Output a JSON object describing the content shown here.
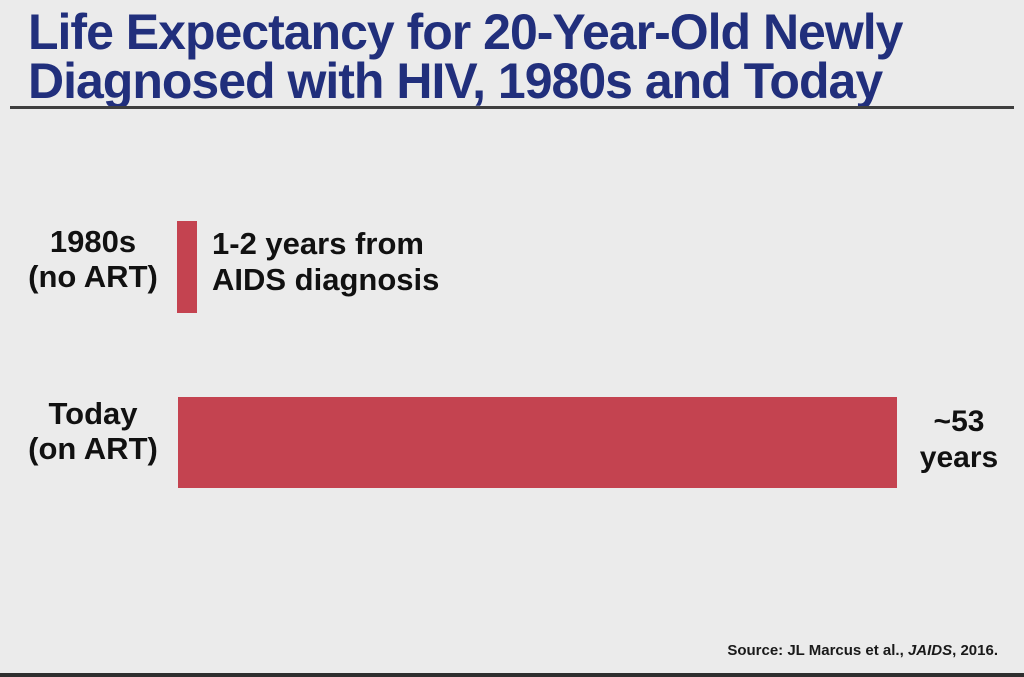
{
  "page": {
    "background_color": "#ebebeb",
    "bottom_strip_color": "#2e2e2e"
  },
  "header": {
    "title_line1": "Life Expectancy for 20-Year-Old Newly",
    "title_line2": "Diagnosed with HIV, 1980s and Today",
    "title_color": "#212f7c"
  },
  "rows": [
    {
      "label_line1": "1980s",
      "label_line2": "(no ART)",
      "annotation_line1": "1-2 years from",
      "annotation_line2": "AIDS diagnosis",
      "value": 1.5
    },
    {
      "label_line1": "Today",
      "label_line2": "(on ART)",
      "annotation_line1": "~53",
      "annotation_line2": "years",
      "value": 53
    }
  ],
  "footer": {
    "source_prefix": "Source: JL Marcus et al., ",
    "source_journal": "JAIDS",
    "source_suffix": ", 2016."
  },
  "chart_data": {
    "type": "bar",
    "orientation": "horizontal",
    "title": "Life Expectancy for 20-Year-Old Newly Diagnosed with HIV, 1980s and Today",
    "categories": [
      "1980s (no ART)",
      "Today (on ART)"
    ],
    "values": [
      1.5,
      53
    ],
    "value_unit": "years",
    "annotations": [
      "1-2 years from AIDS diagnosis",
      "~53 years"
    ],
    "xlim": [
      0,
      53
    ],
    "grid": false,
    "legend": false,
    "bar_color": "#c44350",
    "source": "Source: JL Marcus et al., JAIDS, 2016."
  }
}
